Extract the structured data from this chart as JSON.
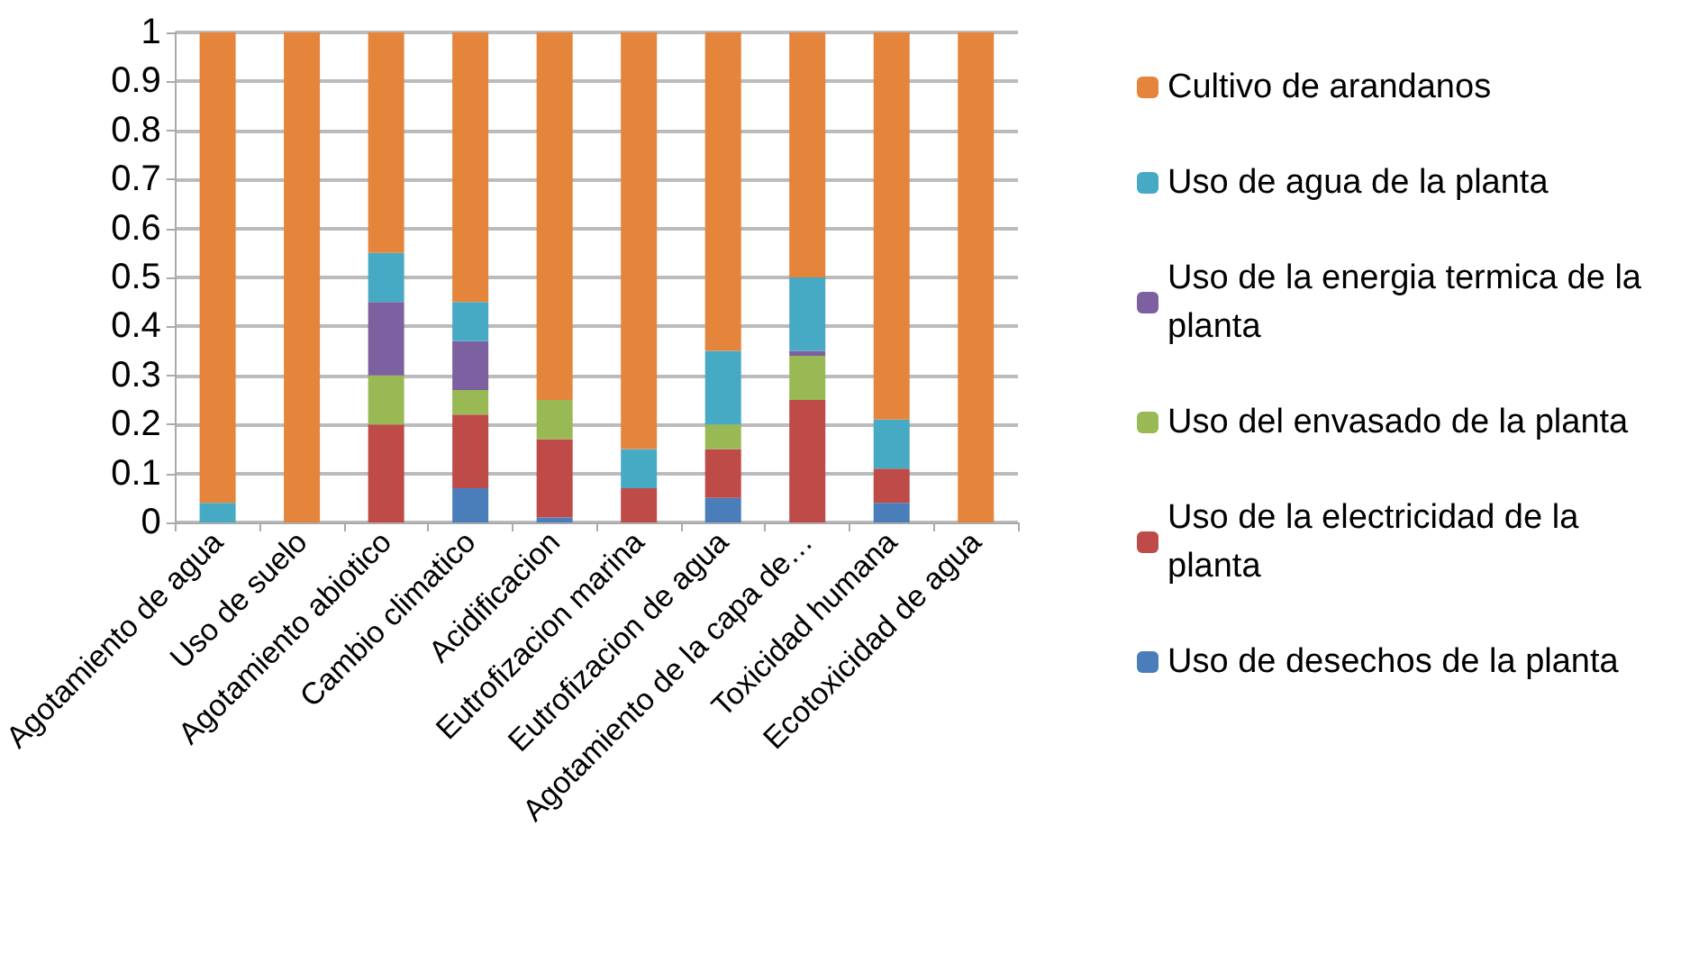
{
  "chart_data": {
    "type": "bar",
    "stacked": true,
    "categories": [
      "Agotamiento de agua",
      "Uso de suelo",
      "Agotamiento abiotico",
      "Cambio climatico",
      "Acidificacion",
      "Eutrofizacion marina",
      "Eutrofizacion de agua",
      "Agotamiento de la capa de…",
      "Toxicidad humana",
      "Ecotoxicidad de agua"
    ],
    "series": [
      {
        "name": "Uso de desechos de la planta",
        "color": "#4a7ebb",
        "values": [
          0,
          0,
          0,
          0.07,
          0.01,
          0,
          0.05,
          0,
          0.04,
          0
        ]
      },
      {
        "name": "Uso de la electricidad de la planta",
        "color": "#be4b48",
        "values": [
          0,
          0,
          0.2,
          0.15,
          0.16,
          0.07,
          0.1,
          0.25,
          0.07,
          0
        ]
      },
      {
        "name": "Uso del envasado de la planta",
        "color": "#98b954",
        "values": [
          0,
          0,
          0.1,
          0.05,
          0.08,
          0,
          0.05,
          0.09,
          0,
          0
        ]
      },
      {
        "name": "Uso de la energia termica de la planta",
        "color": "#7d60a0",
        "values": [
          0,
          0,
          0.15,
          0.1,
          0,
          0,
          0,
          0.01,
          0,
          0
        ]
      },
      {
        "name": "Uso de agua de la planta",
        "color": "#46aac5",
        "values": [
          0.04,
          0,
          0.1,
          0.08,
          0,
          0.08,
          0.15,
          0.15,
          0.1,
          0
        ]
      },
      {
        "name": "Cultivo de arandanos",
        "color": "#e5843b",
        "values": [
          0.96,
          1,
          0.45,
          0.55,
          0.75,
          0.85,
          0.65,
          0.5,
          0.79,
          1
        ]
      }
    ],
    "ylim": [
      0,
      1
    ],
    "yticks": [
      0,
      0.1,
      0.2,
      0.3,
      0.4,
      0.5,
      0.6,
      0.7,
      0.8,
      0.9,
      1
    ],
    "grid": "y",
    "legend": "right"
  }
}
